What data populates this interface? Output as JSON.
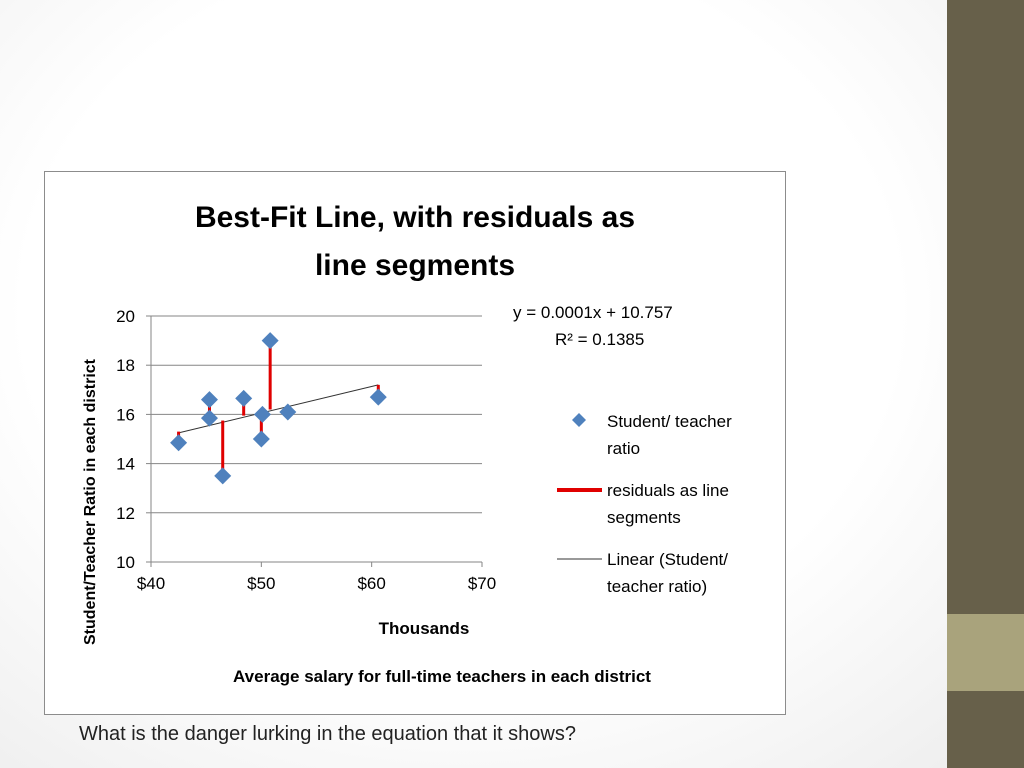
{
  "caption": "What is the danger lurking in the equation that it shows?",
  "colors": {
    "sidebar": "#67604a",
    "sidebar_accent": "#a9a37c",
    "marker": "#4f81bd",
    "residual": "#e00000",
    "trendline": "#333333",
    "grid": "#868686"
  },
  "chart_data": {
    "type": "scatter",
    "title_lines": [
      "Best-Fit Line, with residuals as",
      "line segments"
    ],
    "xlabel_lines": [
      "Thousands",
      "Average salary for full-time teachers in each district"
    ],
    "ylabel": "Student/Teacher Ratio in each district",
    "xlim": [
      40,
      70
    ],
    "ylim": [
      10,
      20
    ],
    "x_ticks": [
      40,
      50,
      60,
      70
    ],
    "x_tick_labels": [
      "$40",
      "$50",
      "$60",
      "$70"
    ],
    "y_ticks": [
      10,
      12,
      14,
      16,
      18,
      20
    ],
    "y_tick_labels": [
      "10",
      "12",
      "14",
      "16",
      "18",
      "20"
    ],
    "grid": "horizontal",
    "legend_position": "right",
    "equation_lines": [
      "y = 0.0001x + 10.757",
      "R² = 0.1385"
    ],
    "series": [
      {
        "name": "Student/ teacher ratio",
        "kind": "scatter",
        "x": [
          42.5,
          45.3,
          45.3,
          46.5,
          48.4,
          50.0,
          50.1,
          50.8,
          52.4,
          60.6
        ],
        "y": [
          14.85,
          16.6,
          15.85,
          13.5,
          16.65,
          15.0,
          16.0,
          19.0,
          16.1,
          16.7
        ],
        "residual_to": [
          15.3,
          15.6,
          15.6,
          15.75,
          15.95,
          16.1,
          16.1,
          16.2,
          16.35,
          17.2
        ]
      },
      {
        "name": "residuals as line segments",
        "kind": "residual"
      },
      {
        "name": "Linear (Student/ teacher ratio)",
        "kind": "trendline",
        "x": [
          42.5,
          60.6
        ],
        "y": [
          15.25,
          17.2
        ]
      }
    ]
  }
}
